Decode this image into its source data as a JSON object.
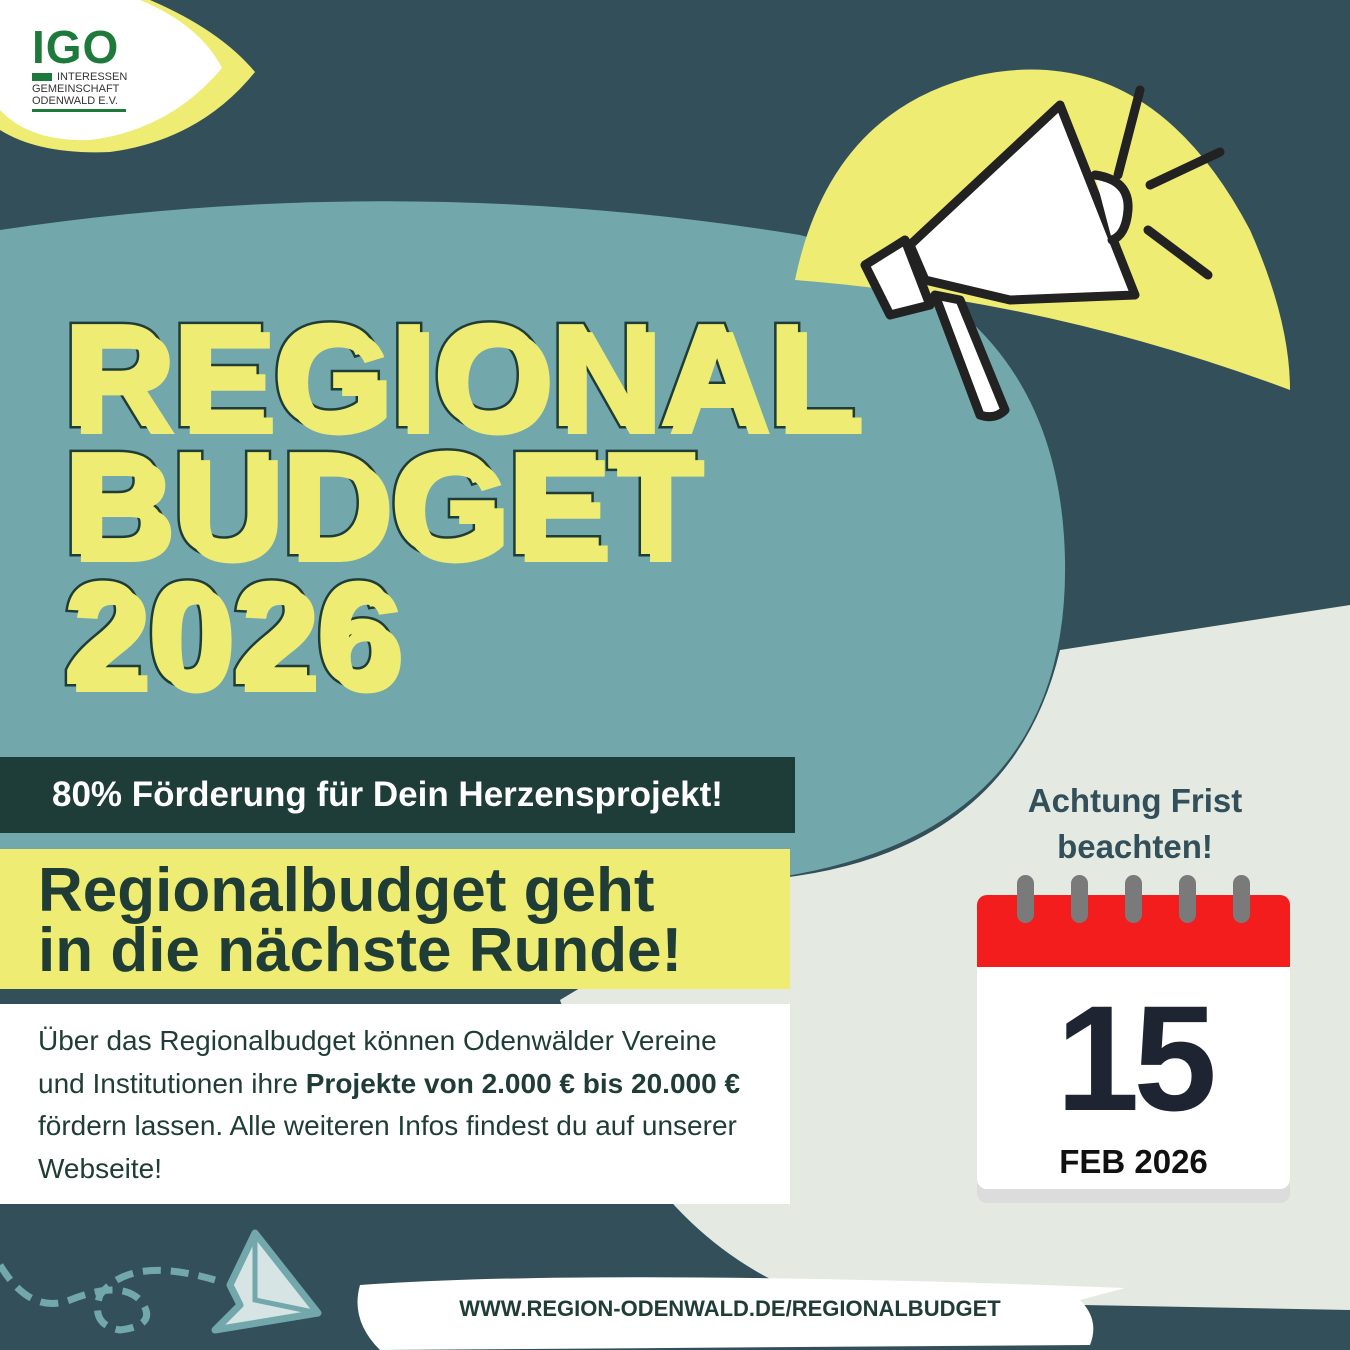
{
  "logo": {
    "mark": "IGO",
    "line1": "INTERESSEN",
    "line2": "GEMEINSCHAFT",
    "line3": "ODENWALD E.V."
  },
  "title": {
    "line1": "REGIONAL",
    "line2": "BUDGET",
    "line3": "2026"
  },
  "band": "80% Förderung für Dein Herzensprojekt!",
  "headline": {
    "line1": "Regionalbudget geht",
    "line2": "in die nächste Runde!"
  },
  "body": {
    "t1": "Über das Regionalbudget können Odenwälder Vereine und Institutionen ihre ",
    "b1": "Projekte von 2.000 € bis 20.000 €",
    "t2": " fördern lassen. Alle weiteren Infos findest du auf unserer Webseite!"
  },
  "deadline": {
    "line1": "Achtung Frist",
    "line2": "beachten!",
    "day": "15",
    "month": "FEB 2026"
  },
  "url": "WWW.REGION-ODENWALD.DE/REGIONALBUDGET",
  "icons": [
    "megaphone-icon",
    "calendar-icon",
    "paper-plane-icon"
  ],
  "colors": {
    "background": "#33505a",
    "teal": "#72a8ab",
    "yellow": "#eeec72",
    "dark_green": "#1f3d38",
    "calendar_red": "#f41d1d",
    "logo_green": "#1e7a3a"
  }
}
